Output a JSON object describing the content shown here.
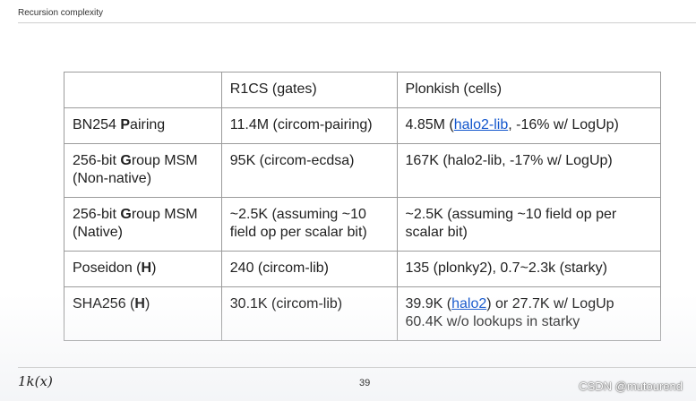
{
  "header": {
    "title": "Recursion complexity"
  },
  "table": {
    "col_headers": [
      "",
      "R1CS (gates)",
      "Plonkish (cells)"
    ],
    "rows": [
      {
        "label_pre": "BN254 ",
        "label_bold": "P",
        "label_post": "airing",
        "label_line2": "",
        "r1cs_l1": "11.4M (circom-pairing)",
        "r1cs_l2": "",
        "plk_pre": "4.85M (",
        "plk_link": "halo2-lib",
        "plk_post": ", -16% w/ LogUp)",
        "plk_l2": ""
      },
      {
        "label_pre": "256-bit ",
        "label_bold": "G",
        "label_post": "roup MSM",
        "label_line2": "(Non-native)",
        "r1cs_l1": "95K (circom-ecdsa)",
        "r1cs_l2": "",
        "plk_l1": "167K (halo2-lib, -17% w/ LogUp)",
        "plk_l2": ""
      },
      {
        "label_pre": "256-bit ",
        "label_bold": "G",
        "label_post": "roup MSM",
        "label_line2": "(Native)",
        "r1cs_l1": "~2.5K (assuming ~10",
        "r1cs_l2": "field op per scalar bit)",
        "plk_l1": "~2.5K (assuming ~10 field op per",
        "plk_l2": "scalar bit)"
      },
      {
        "label_pre": "Poseidon (",
        "label_bold": "H",
        "label_post": ")",
        "label_line2": "",
        "r1cs_l1": "240 (circom-lib)",
        "r1cs_l2": "",
        "plk_l1": "135 (plonky2), 0.7~2.3k (starky)",
        "plk_l2": ""
      },
      {
        "label_pre": "SHA256 (",
        "label_bold": "H",
        "label_post": ")",
        "label_line2": "",
        "r1cs_l1": "30.1K (circom-lib)",
        "r1cs_l2": "",
        "plk_pre": "39.9K (",
        "plk_link": "halo2",
        "plk_post": ") or 27.7K w/ LogUp",
        "plk_l2": "60.4K w/o lookups in starky"
      }
    ]
  },
  "footer": {
    "logo": "1k(x)",
    "page_number": "39",
    "watermark": "CSDN @mutourend"
  },
  "colors": {
    "link": "#1155cc",
    "border": "#9b9b9b"
  }
}
